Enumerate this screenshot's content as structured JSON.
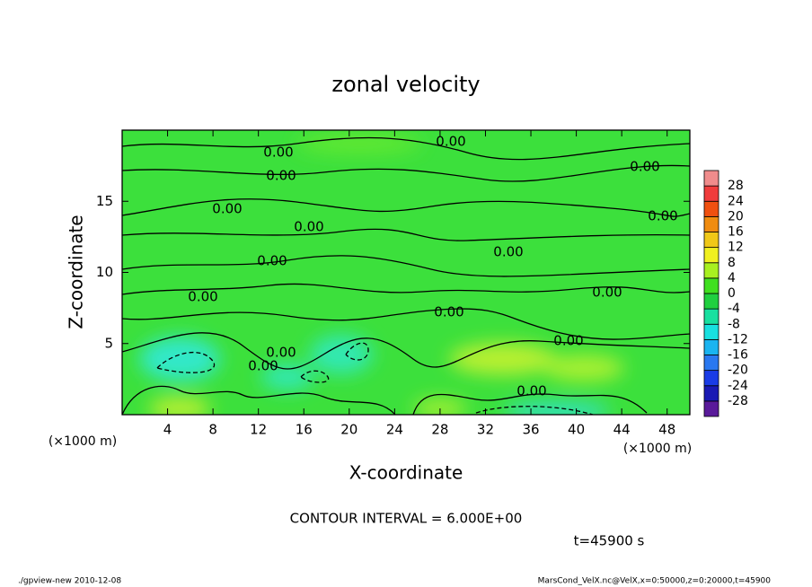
{
  "chart_data": {
    "type": "contour",
    "title": "zonal velocity",
    "xlabel": "X-coordinate",
    "ylabel": "Z-coordinate",
    "x_unit": "(×1000 m)",
    "y_unit": "(×1000 m)",
    "xlim": [
      0,
      50
    ],
    "xticks": [
      4,
      8,
      12,
      16,
      20,
      24,
      28,
      32,
      36,
      40,
      44,
      48
    ],
    "ylim": [
      0,
      20
    ],
    "yticks": [
      5,
      10,
      15
    ],
    "contour_labels": [
      "0.00",
      "0.00",
      "0.00",
      "0.00",
      "0.00",
      "0.00",
      "0.00",
      "0.00",
      "0.00",
      "0.00",
      "0.00",
      "0.00",
      "0.00",
      "0.00",
      "0.00",
      "0.00"
    ],
    "colorbar": {
      "levels": [
        -28,
        -24,
        -20,
        -16,
        -12,
        -8,
        -4,
        0,
        4,
        8,
        12,
        16,
        20,
        24,
        28
      ],
      "colors": [
        "#5a1a9a",
        "#1a1ab4",
        "#1a3ce6",
        "#2a78f0",
        "#1ab4f0",
        "#18e0e0",
        "#18e0a0",
        "#20d040",
        "#40e020",
        "#a8f020",
        "#f0f020",
        "#f0c818",
        "#f08c10",
        "#f05010",
        "#f03c3c",
        "#f08c8c"
      ]
    },
    "contour_interval": "CONTOUR INTERVAL = 6.000E+00",
    "time_label": "t=45900 s",
    "footer_left": "./gpview-new  2010-12-08",
    "footer_right": "MarsCond_VelX.nc@VelX,x=0:50000,z=0:20000,t=45900"
  }
}
